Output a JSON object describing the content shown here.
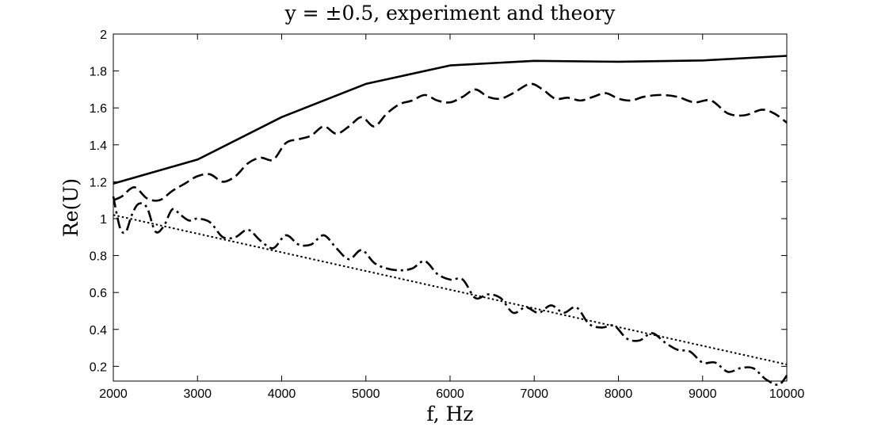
{
  "chart_data": {
    "type": "line",
    "title": "y = ±0.5, experiment and theory",
    "xlabel": "f, Hz",
    "ylabel": "Re(U)",
    "xlim": [
      2000,
      10000
    ],
    "ylim": [
      0.12,
      2.0
    ],
    "grid": false,
    "legend": "none",
    "x_ticks": [
      2000,
      3000,
      4000,
      5000,
      6000,
      7000,
      8000,
      9000,
      10000
    ],
    "y_ticks": [
      0.2,
      0.4,
      0.6,
      0.8,
      1,
      1.2,
      1.4,
      1.6,
      1.8,
      2
    ],
    "series": [
      {
        "style": "solid",
        "color": "#000000",
        "x": [
          2000,
          3000,
          4000,
          5000,
          6000,
          7000,
          8000,
          9000,
          10000
        ],
        "y": [
          1.19,
          1.32,
          1.55,
          1.73,
          1.83,
          1.855,
          1.85,
          1.857,
          1.882
        ]
      },
      {
        "style": "dashed",
        "color": "#000000",
        "x": [
          2000,
          2100,
          2250,
          2400,
          2550,
          2700,
          2850,
          3000,
          3150,
          3300,
          3450,
          3600,
          3750,
          3900,
          4050,
          4200,
          4350,
          4500,
          4650,
          4800,
          4950,
          5100,
          5250,
          5400,
          5550,
          5700,
          5850,
          6000,
          6150,
          6300,
          6450,
          6600,
          6750,
          6950,
          7100,
          7250,
          7400,
          7550,
          7700,
          7850,
          8000,
          8150,
          8300,
          8500,
          8700,
          8900,
          9100,
          9300,
          9500,
          9700,
          9850,
          10000
        ],
        "y": [
          1.1,
          1.12,
          1.17,
          1.11,
          1.1,
          1.15,
          1.19,
          1.23,
          1.24,
          1.2,
          1.23,
          1.3,
          1.33,
          1.32,
          1.41,
          1.43,
          1.45,
          1.5,
          1.46,
          1.5,
          1.55,
          1.5,
          1.57,
          1.62,
          1.64,
          1.67,
          1.64,
          1.63,
          1.66,
          1.7,
          1.66,
          1.65,
          1.68,
          1.73,
          1.7,
          1.65,
          1.655,
          1.64,
          1.66,
          1.68,
          1.65,
          1.64,
          1.66,
          1.67,
          1.66,
          1.63,
          1.64,
          1.57,
          1.56,
          1.59,
          1.57,
          1.52
        ]
      },
      {
        "style": "dashdot",
        "color": "#000000",
        "x": [
          2000,
          2080,
          2150,
          2220,
          2300,
          2400,
          2500,
          2600,
          2700,
          2800,
          2900,
          3000,
          3150,
          3300,
          3450,
          3600,
          3750,
          3900,
          4050,
          4200,
          4350,
          4500,
          4650,
          4800,
          4950,
          5100,
          5250,
          5400,
          5550,
          5700,
          5850,
          6000,
          6150,
          6300,
          6450,
          6600,
          6750,
          6900,
          7050,
          7200,
          7350,
          7500,
          7650,
          7800,
          7950,
          8100,
          8250,
          8400,
          8550,
          8700,
          8850,
          9000,
          9150,
          9300,
          9450,
          9600,
          9750,
          9900,
          10000
        ],
        "y": [
          1.12,
          0.95,
          0.93,
          1.02,
          1.08,
          1.06,
          0.93,
          0.96,
          1.05,
          1.02,
          0.99,
          1.0,
          0.98,
          0.9,
          0.9,
          0.94,
          0.88,
          0.84,
          0.91,
          0.86,
          0.86,
          0.91,
          0.84,
          0.78,
          0.83,
          0.76,
          0.73,
          0.72,
          0.73,
          0.77,
          0.7,
          0.67,
          0.67,
          0.57,
          0.59,
          0.57,
          0.49,
          0.52,
          0.49,
          0.53,
          0.49,
          0.52,
          0.43,
          0.41,
          0.42,
          0.35,
          0.34,
          0.38,
          0.33,
          0.29,
          0.28,
          0.22,
          0.22,
          0.17,
          0.19,
          0.19,
          0.13,
          0.1,
          0.15
        ]
      },
      {
        "style": "dotted",
        "color": "#000000",
        "x": [
          2000,
          10000
        ],
        "y": [
          1.02,
          0.21
        ]
      }
    ]
  }
}
